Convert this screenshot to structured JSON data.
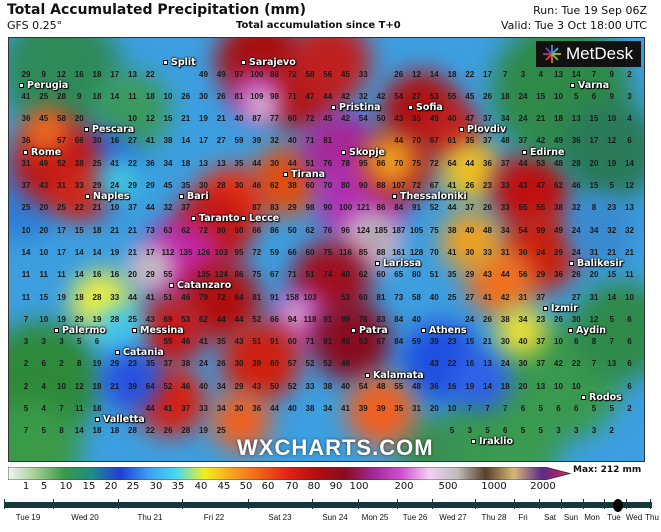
{
  "header": {
    "title": "Total Accumulated Precipitation (mm)",
    "model": "GFS 0.25°",
    "subtitle": "Total accumulation since T+0",
    "run": "Run: Tue 19 Sep 06Z",
    "valid": "Valid: Tue 3 Oct 18:00 UTC"
  },
  "logo": {
    "text": "MetDesk"
  },
  "watermark": "WXCHARTS.COM",
  "cities": [
    "Sarajevo",
    "Split",
    "Perugia",
    "Pescara",
    "Rome",
    "Bari",
    "Naples",
    "Taranto",
    "Lecce",
    "Tirana",
    "Skopje",
    "Pristina",
    "Sofia",
    "Plovdiv",
    "Varna",
    "Edirne",
    "Thessaloniki",
    "Larissa",
    "Balikesir",
    "Izmir",
    "Aydin",
    "Athens",
    "Patra",
    "Kalamata",
    "Catanzaro",
    "Messina",
    "Palermo",
    "Catania",
    "Valletta",
    "Rodos",
    "Iraklio"
  ],
  "grid": {
    "unit": "mm",
    "rows": [
      [
        29,
        9,
        12,
        16,
        18,
        17,
        13,
        22,
        null,
        null,
        49,
        49,
        97,
        100,
        88,
        72,
        58,
        56,
        45,
        33,
        null,
        26,
        12,
        14,
        18,
        22,
        17,
        7,
        3,
        4,
        13,
        14,
        7,
        9,
        2
      ],
      [
        41,
        25,
        28,
        9,
        18,
        14,
        11,
        18,
        10,
        26,
        30,
        26,
        81,
        109,
        98,
        71,
        47,
        44,
        42,
        32,
        42,
        54,
        27,
        53,
        55,
        45,
        26,
        18,
        24,
        15,
        10,
        5,
        6,
        9,
        3
      ],
      [
        36,
        45,
        58,
        20,
        null,
        null,
        10,
        12,
        15,
        21,
        19,
        21,
        40,
        87,
        77,
        60,
        72,
        45,
        42,
        54,
        50,
        43,
        35,
        49,
        40,
        47,
        37,
        34,
        24,
        21,
        18,
        13,
        15,
        10,
        4
      ],
      [
        36,
        null,
        57,
        66,
        30,
        16,
        27,
        41,
        38,
        14,
        17,
        27,
        59,
        39,
        32,
        40,
        71,
        81,
        null,
        null,
        null,
        44,
        70,
        67,
        61,
        35,
        37,
        48,
        37,
        42,
        49,
        36,
        17,
        12,
        6
      ],
      [
        31,
        49,
        52,
        38,
        25,
        41,
        22,
        36,
        34,
        18,
        13,
        13,
        35,
        44,
        30,
        44,
        51,
        76,
        78,
        95,
        86,
        70,
        75,
        72,
        64,
        44,
        36,
        37,
        44,
        53,
        48,
        28,
        20,
        19,
        14
      ],
      [
        37,
        43,
        31,
        33,
        29,
        24,
        29,
        29,
        45,
        35,
        30,
        28,
        30,
        46,
        62,
        38,
        60,
        70,
        80,
        90,
        88,
        107,
        72,
        67,
        41,
        26,
        23,
        33,
        43,
        47,
        62,
        46,
        15,
        5,
        12
      ],
      [
        25,
        20,
        25,
        22,
        21,
        10,
        37,
        44,
        32,
        37,
        null,
        null,
        null,
        87,
        83,
        29,
        98,
        90,
        100,
        121,
        86,
        84,
        91,
        52,
        44,
        37,
        26,
        33,
        55,
        55,
        38,
        32,
        8,
        23,
        13
      ],
      [
        10,
        20,
        17,
        15,
        18,
        21,
        21,
        73,
        63,
        62,
        72,
        80,
        60,
        66,
        86,
        50,
        62,
        76,
        96,
        124,
        185,
        187,
        105,
        75,
        38,
        40,
        48,
        34,
        54,
        99,
        49,
        24,
        34,
        32,
        32
      ],
      [
        14,
        10,
        17,
        14,
        14,
        19,
        21,
        17,
        112,
        135,
        126,
        103,
        95,
        72,
        59,
        66,
        60,
        75,
        116,
        85,
        88,
        161,
        128,
        70,
        41,
        30,
        33,
        31,
        30,
        24,
        29,
        24,
        31,
        21,
        21
      ],
      [
        11,
        11,
        11,
        14,
        16,
        16,
        20,
        29,
        55,
        null,
        135,
        124,
        86,
        75,
        67,
        71,
        51,
        74,
        40,
        62,
        60,
        65,
        80,
        51,
        35,
        29,
        43,
        44,
        56,
        29,
        36,
        26,
        20,
        15,
        11
      ],
      [
        11,
        15,
        19,
        18,
        28,
        33,
        44,
        41,
        51,
        46,
        79,
        72,
        64,
        81,
        91,
        158,
        103,
        null,
        53,
        60,
        81,
        73,
        58,
        40,
        25,
        27,
        41,
        42,
        31,
        37,
        null,
        27,
        31,
        14,
        10
      ],
      [
        7,
        10,
        19,
        29,
        19,
        28,
        25,
        43,
        69,
        53,
        62,
        44,
        44,
        52,
        66,
        94,
        118,
        91,
        99,
        76,
        83,
        84,
        40,
        null,
        null,
        24,
        26,
        38,
        34,
        23,
        26,
        30,
        12,
        5,
        6
      ],
      [
        3,
        3,
        3,
        5,
        6,
        null,
        null,
        null,
        55,
        46,
        41,
        35,
        43,
        51,
        91,
        60,
        71,
        81,
        48,
        53,
        67,
        84,
        59,
        39,
        23,
        15,
        21,
        30,
        40,
        37,
        10,
        6,
        8,
        7,
        6
      ],
      [
        2,
        6,
        2,
        8,
        19,
        29,
        23,
        35,
        37,
        38,
        24,
        26,
        30,
        39,
        60,
        57,
        52,
        52,
        46,
        null,
        null,
        null,
        null,
        43,
        22,
        16,
        13,
        24,
        30,
        37,
        42,
        22,
        7,
        13,
        6
      ],
      [
        2,
        4,
        10,
        12,
        18,
        21,
        39,
        64,
        52,
        46,
        40,
        34,
        29,
        43,
        50,
        52,
        33,
        38,
        40,
        54,
        48,
        55,
        48,
        36,
        16,
        19,
        14,
        18,
        20,
        13,
        10,
        10,
        null,
        null,
        6
      ],
      [
        5,
        4,
        7,
        11,
        18,
        null,
        null,
        44,
        41,
        37,
        33,
        34,
        30,
        36,
        44,
        40,
        38,
        34,
        41,
        39,
        39,
        35,
        31,
        20,
        10,
        7,
        7,
        7,
        6,
        5,
        6,
        6,
        5,
        5,
        2
      ],
      [
        7,
        5,
        8,
        14,
        18,
        18,
        28,
        22,
        26,
        28,
        19,
        25,
        null,
        null,
        null,
        null,
        null,
        null,
        null,
        null,
        null,
        null,
        null,
        null,
        5,
        3,
        5,
        6,
        5,
        5,
        3,
        3,
        3,
        2,
        null
      ]
    ]
  },
  "legend": {
    "labels": [
      "1",
      "5",
      "10",
      "15",
      "20",
      "25",
      "30",
      "35",
      "40",
      "45",
      "50",
      "60",
      "70",
      "80",
      "90",
      "100",
      "200",
      "500",
      "1000",
      "2000"
    ],
    "max": "Max: 212 mm",
    "colors": [
      "#f4f4f4",
      "#9fcf8f",
      "#3a9a48",
      "#1f8a8a",
      "#1f3fd6",
      "#3aa0f0",
      "#48d8f0",
      "#f0f020",
      "#f8a020",
      "#f06018",
      "#e02018",
      "#b01010",
      "#8a0c20",
      "#a02898",
      "#d050d0",
      "#f4d0f4",
      "#bdbdbd",
      "#5a4028",
      "#d8b878",
      "#5a2a8a",
      "#e0205a"
    ]
  },
  "timeline": {
    "labels": [
      "Tue 19",
      "Wed 20",
      "Thu 21",
      "Fri 22",
      "Sat 23",
      "Sun 24",
      "Mon 25",
      "Tue 26",
      "Wed 27",
      "Thu 28",
      "Fri",
      "Sat",
      "Sun",
      "Mon",
      "Tue",
      "Wed",
      "Thu"
    ],
    "current": "Tue 3 Oct 18:00 UTC"
  }
}
